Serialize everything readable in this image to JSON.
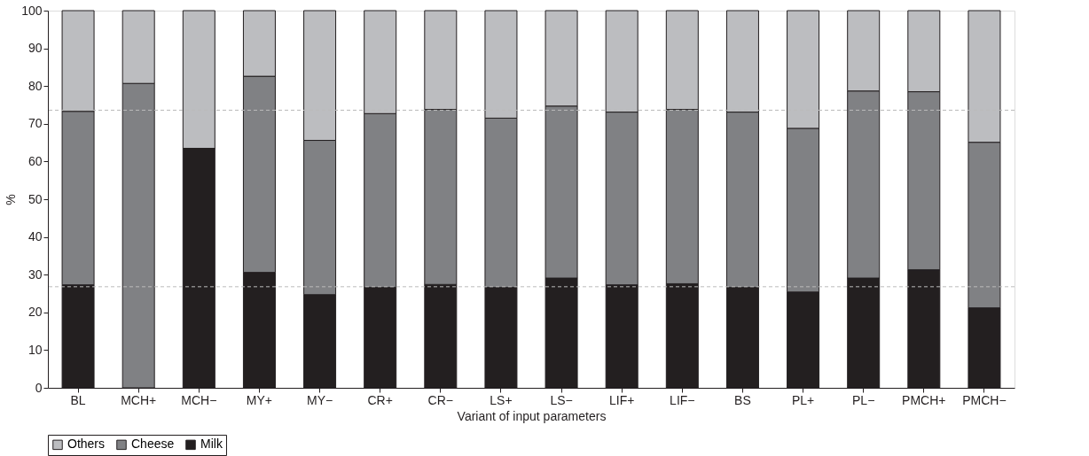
{
  "chart_data": {
    "type": "bar",
    "stacked": true,
    "xlabel": "Variant of input parameters",
    "ylabel": "%",
    "categories": [
      "BL",
      "MCH+",
      "MCH−",
      "MY+",
      "MY−",
      "CR+",
      "CR−",
      "LS+",
      "LS−",
      "LIF+",
      "LIF−",
      "BS",
      "PL+",
      "PL−",
      "PMCH+",
      "PMCH−"
    ],
    "series": [
      {
        "name": "Milk",
        "color": "#231f20",
        "values": [
          27.3,
          0,
          63.5,
          30.6,
          24.7,
          26.6,
          27.4,
          26.6,
          29.1,
          27.3,
          27.6,
          26.6,
          25.4,
          29.1,
          31.3,
          21.2
        ]
      },
      {
        "name": "Cheese",
        "color": "#808184",
        "values": [
          46.0,
          80.7,
          0,
          52.0,
          40.9,
          46.1,
          46.4,
          44.9,
          45.6,
          45.8,
          46.2,
          46.5,
          43.4,
          49.6,
          47.2,
          43.9
        ]
      },
      {
        "name": "Others",
        "color": "#bcbdc0",
        "values": [
          26.7,
          19.3,
          36.5,
          17.4,
          34.4,
          27.3,
          26.2,
          28.5,
          25.3,
          26.9,
          26.2,
          26.9,
          31.2,
          21.3,
          21.5,
          34.9
        ]
      }
    ],
    "ylim": [
      0,
      100
    ],
    "yticks": [
      0,
      10,
      20,
      30,
      40,
      50,
      60,
      70,
      80,
      90,
      100
    ],
    "ref_lines": [
      {
        "axis": "y",
        "value": 26.8,
        "color": "#bbbbbb",
        "line_style": "dashed"
      },
      {
        "axis": "y",
        "value": 73.6,
        "color": "#bbbbbb",
        "line_style": "dashed"
      }
    ],
    "grid": false,
    "legend": "bottom"
  }
}
